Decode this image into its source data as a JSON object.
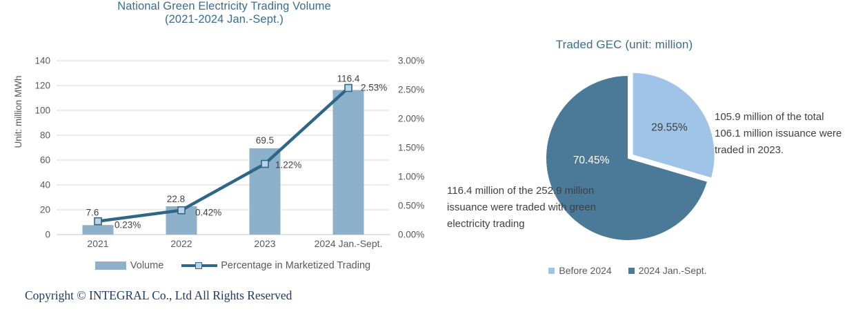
{
  "page": {
    "copyright": "Copyright © INTEGRAL Co., Ltd All Rights Reserved"
  },
  "colors": {
    "title": "#386D8E",
    "bar": "#8DB0CB",
    "line": "#2E6688",
    "marker_fill": "#BCD3E5",
    "pie_light": "#9FC4E7",
    "pie_dark": "#4A7A97",
    "grid": "#D9D9D9",
    "baseline": "#C6C6C6",
    "tick_text": "#595959",
    "label_text": "#404040",
    "leader": "#A6A6A6",
    "copyright_text": "#1F3864",
    "pie_label_light_slice": "#404040",
    "pie_label_dark_slice": "#FFFFFF"
  },
  "chart_data": [
    {
      "type": "bar",
      "title": "National Green Electricity Trading Volume",
      "subtitle": "(2021-2024 Jan.-Sept.)",
      "categories": [
        "2021",
        "2022",
        "2023",
        "2024 Jan.-Sept."
      ],
      "series": [
        {
          "name": "Volume",
          "type": "bar",
          "axis": "left",
          "values": [
            7.6,
            22.8,
            69.5,
            116.4
          ],
          "labels": [
            "7.6",
            "22.8",
            "69.5",
            "116.4"
          ]
        },
        {
          "name": "Percentage in Marketized Trading",
          "type": "line",
          "axis": "right",
          "values": [
            0.23,
            0.42,
            1.22,
            2.53
          ],
          "labels": [
            "0.23%",
            "0.42%",
            "1.22%",
            "2.53%"
          ]
        }
      ],
      "left_axis": {
        "label": "Unit: million MWh",
        "min": 0,
        "max": 140,
        "step": 20,
        "ticks": [
          "0",
          "20",
          "40",
          "60",
          "80",
          "100",
          "120",
          "140"
        ]
      },
      "right_axis": {
        "min": 0,
        "max": 3,
        "step": 0.5,
        "ticks": [
          "0.00%",
          "0.50%",
          "1.00%",
          "1.50%",
          "2.00%",
          "2.50%",
          "3.00%"
        ]
      },
      "grid": true,
      "legend_position": "bottom"
    },
    {
      "type": "pie",
      "title": "Traded GEC (unit: million)",
      "slices": [
        {
          "name": "Before 2024",
          "value": 29.55,
          "label": "29.55%",
          "exploded": true
        },
        {
          "name": "2024 Jan.-Sept.",
          "value": 70.45,
          "label": "70.45%",
          "exploded": false
        }
      ],
      "annotations": [
        {
          "position": "right",
          "text": "105.9 million of the total 106.1 million issuance were traded in 2023.",
          "lines": [
            "105.9 million of the",
            "total 106.1 million",
            "issuance were traded",
            "in 2023."
          ]
        },
        {
          "position": "left",
          "text": "116.4 million of the 252.9 million issuance were traded with green electricity trading",
          "lines": [
            "116.4 million of the",
            "252.9 million issuance",
            "were traded with green",
            "electricity trading"
          ]
        }
      ],
      "legend_position": "bottom"
    }
  ]
}
